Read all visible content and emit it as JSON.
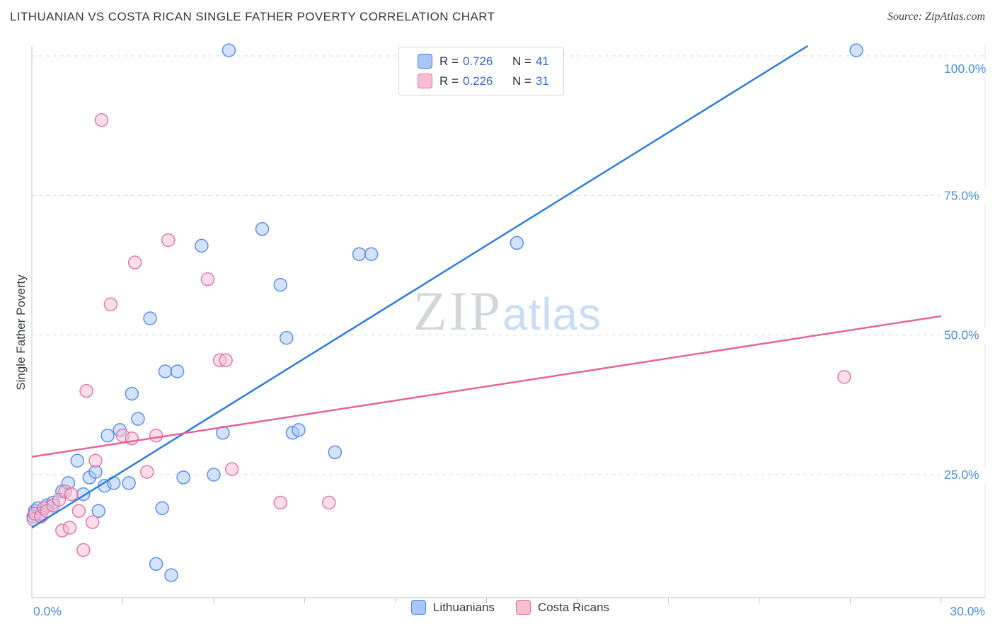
{
  "header": {
    "source": "Source: ZipAtlas.com"
  },
  "axes": {
    "x_min_label": "0.0%",
    "x_max_label": "30.0%"
  },
  "legend_box": {
    "rows": [
      {
        "r_label": "R =",
        "r_value": "0.726",
        "n_label": "N =",
        "n_value": "41"
      },
      {
        "r_label": "R =",
        "r_value": "0.226",
        "n_label": "N =",
        "n_value": "31"
      }
    ]
  },
  "watermark": {
    "zip": "ZIP",
    "atlas": "atlas"
  },
  "bottom_legend": [
    {
      "label": "Lithuanians"
    },
    {
      "label": "Costa Ricans"
    }
  ],
  "chart_data": {
    "type": "scatter",
    "title": "LITHUANIAN VS COSTA RICAN SINGLE FATHER POVERTY CORRELATION CHART",
    "ylabel": "Single Father Poverty",
    "x_range": [
      0,
      30
    ],
    "y_range": [
      0,
      105
    ],
    "x_tick_step": 3,
    "grid": "horizontal-dashed",
    "legend_position": "top-center",
    "y_gridlines": [
      {
        "value": 100,
        "label": "100.0%"
      },
      {
        "value": 75,
        "label": "75.0%"
      },
      {
        "value": 50,
        "label": "50.0%"
      },
      {
        "value": 25,
        "label": "25.0%"
      }
    ],
    "series": [
      {
        "name": "Lithuanians",
        "r": 0.726,
        "n": 41,
        "fill": "#aac6f7",
        "stroke": "#4a86e8",
        "points": [
          [
            0.05,
            17.5
          ],
          [
            0.1,
            18.5
          ],
          [
            0.2,
            19
          ],
          [
            0.3,
            18
          ],
          [
            0.5,
            19.5
          ],
          [
            0.7,
            20
          ],
          [
            1.0,
            22
          ],
          [
            1.2,
            23.5
          ],
          [
            1.5,
            27.5
          ],
          [
            1.7,
            21.5
          ],
          [
            1.9,
            24.5
          ],
          [
            2.1,
            25.5
          ],
          [
            2.2,
            18.5
          ],
          [
            2.4,
            23
          ],
          [
            2.5,
            32
          ],
          [
            2.7,
            23.5
          ],
          [
            2.9,
            33
          ],
          [
            3.2,
            23.5
          ],
          [
            3.3,
            39.5
          ],
          [
            3.5,
            35
          ],
          [
            3.9,
            53
          ],
          [
            4.1,
            9
          ],
          [
            4.3,
            19
          ],
          [
            4.4,
            43.5
          ],
          [
            4.6,
            7
          ],
          [
            4.8,
            43.5
          ],
          [
            5.0,
            24.5
          ],
          [
            5.6,
            66
          ],
          [
            6.0,
            25
          ],
          [
            6.3,
            32.5
          ],
          [
            6.5,
            101
          ],
          [
            7.6,
            69
          ],
          [
            8.2,
            59
          ],
          [
            8.4,
            49.5
          ],
          [
            8.6,
            32.5
          ],
          [
            8.8,
            33
          ],
          [
            10.0,
            29
          ],
          [
            10.8,
            64.5
          ],
          [
            11.2,
            64.5
          ],
          [
            16.0,
            66.5
          ],
          [
            27.2,
            101
          ]
        ]
      },
      {
        "name": "Costa Ricans",
        "r": 0.226,
        "n": 31,
        "fill": "#f7bed3",
        "stroke": "#e06c9f",
        "points": [
          [
            0.05,
            17
          ],
          [
            0.1,
            18
          ],
          [
            0.3,
            17.5
          ],
          [
            0.4,
            19
          ],
          [
            0.5,
            18.5
          ],
          [
            0.7,
            19.5
          ],
          [
            0.9,
            20.5
          ],
          [
            1.0,
            15
          ],
          [
            1.1,
            22
          ],
          [
            1.25,
            15.5
          ],
          [
            1.3,
            21.5
          ],
          [
            1.55,
            18.5
          ],
          [
            1.7,
            11.5
          ],
          [
            1.8,
            40
          ],
          [
            2.0,
            16.5
          ],
          [
            2.1,
            27.5
          ],
          [
            2.3,
            88.5
          ],
          [
            2.6,
            55.5
          ],
          [
            3.0,
            32
          ],
          [
            3.3,
            31.5
          ],
          [
            3.4,
            63
          ],
          [
            3.8,
            25.5
          ],
          [
            4.1,
            32
          ],
          [
            4.5,
            67
          ],
          [
            5.8,
            60
          ],
          [
            6.2,
            45.5
          ],
          [
            6.4,
            45.5
          ],
          [
            6.6,
            26
          ],
          [
            8.2,
            20
          ],
          [
            9.8,
            20
          ],
          [
            26.8,
            42.5
          ]
        ]
      }
    ],
    "trendlines": [
      {
        "name": "Lithuanians",
        "color": "#2b7de0",
        "x1": 0,
        "y1": 15.5,
        "x2": 25.6,
        "y2": 101.8
      },
      {
        "name": "Costa Ricans",
        "color": "#e8649a",
        "x1": 0,
        "y1": 28.2,
        "x2": 30,
        "y2": 53.4
      }
    ]
  }
}
